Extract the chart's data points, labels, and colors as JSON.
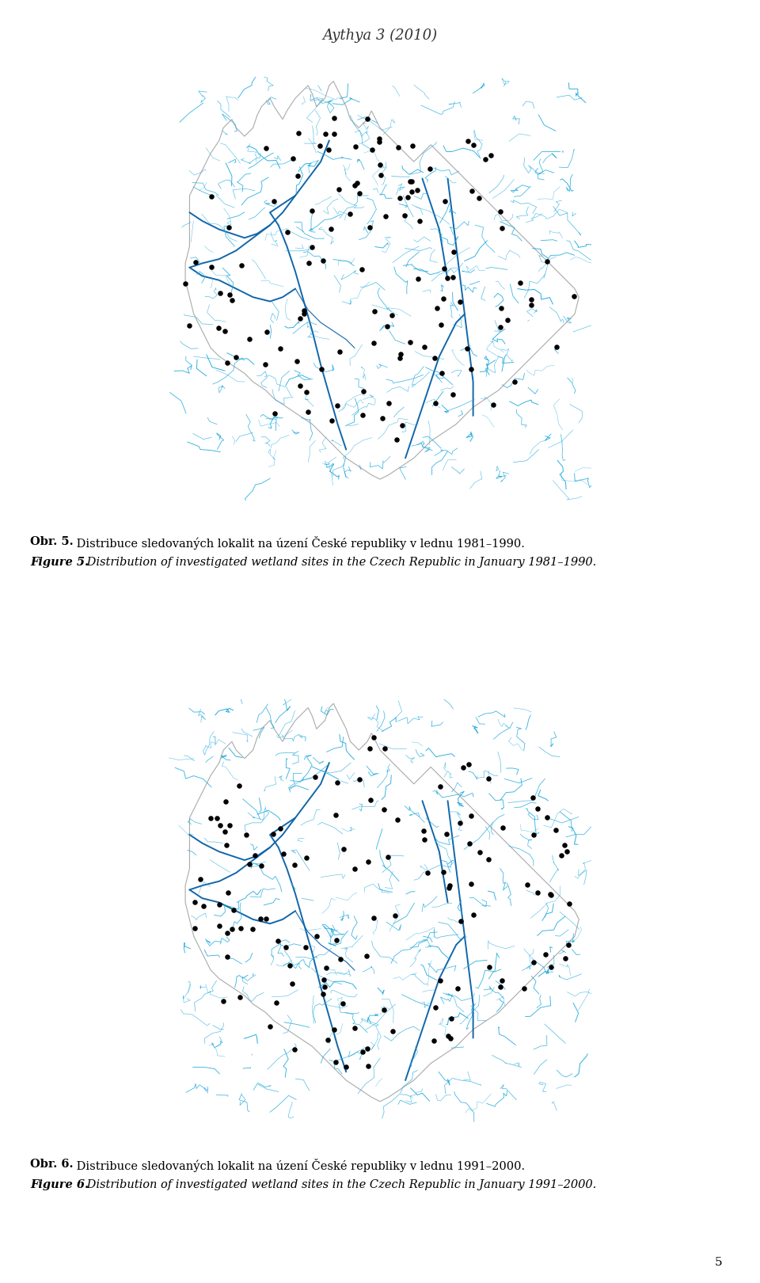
{
  "header": "Aythya 3 (2010)",
  "header_fontsize": 13,
  "header_style": "italic",
  "header_family": "serif",
  "caption1_bold": "Obr. 5.",
  "caption1_text": " Distribuce sledovaných lokalit na úzení České republiky v lednu 1981–1990.",
  "caption2_bold": "Figure 5.",
  "caption2_text": " Distribution of investigated wetland sites in the Czech Republic in January 1981–1990.",
  "caption3_bold": "Obr. 6.",
  "caption3_text": " Distribuce sledovaných lokalit na úzení České republiky v lednu 1991–2000.",
  "caption4_bold": "Figure 6.",
  "caption4_text": " Distribution of investigated wetland sites in the Czech Republic in January 1991–2000.",
  "page_number": "5",
  "caption_fontsize": 10.5,
  "background_color": "#ffffff",
  "river_color_small": "#22aadd",
  "river_color_main": "#1166aa",
  "outline_color": "#aaaaaa",
  "dot_color": "#000000"
}
